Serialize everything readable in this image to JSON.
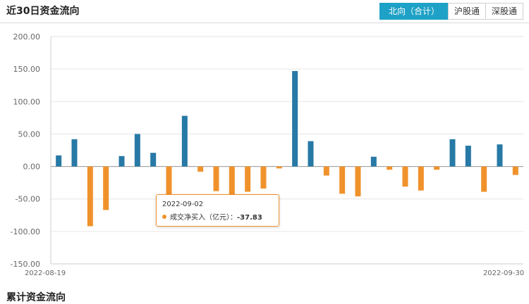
{
  "page": {
    "title": "近30日资金流向",
    "footer_title": "累计资金流向"
  },
  "tabs": [
    {
      "label": "北向（合计）",
      "active": true
    },
    {
      "label": "沪股通",
      "active": false
    },
    {
      "label": "深股通",
      "active": false
    }
  ],
  "tooltip": {
    "date": "2022-09-02",
    "series_label": "成交净买入（亿元）：",
    "value": "-37.83"
  },
  "colors": {
    "positive": "#2779a6",
    "negative": "#f0922b",
    "accent": "#1ea1c6"
  },
  "chart_data": {
    "type": "bar",
    "y_ticks": [
      "200.00",
      "150.00",
      "100.00",
      "50.00",
      "0.00",
      "-50.00",
      "-100.00",
      "-150.00"
    ],
    "ylim": [
      -150,
      200
    ],
    "x_labels": [
      "2022-08-19",
      "2022-09-30"
    ],
    "grid": true,
    "values": [
      17,
      42,
      -92,
      -67,
      16,
      50,
      21,
      -45,
      78,
      -8,
      -38,
      -45,
      -39,
      -34,
      -3,
      147,
      39,
      -14,
      -42,
      -46,
      15,
      -5,
      -31,
      -37,
      -5,
      42,
      32,
      -39,
      34,
      -13
    ]
  }
}
